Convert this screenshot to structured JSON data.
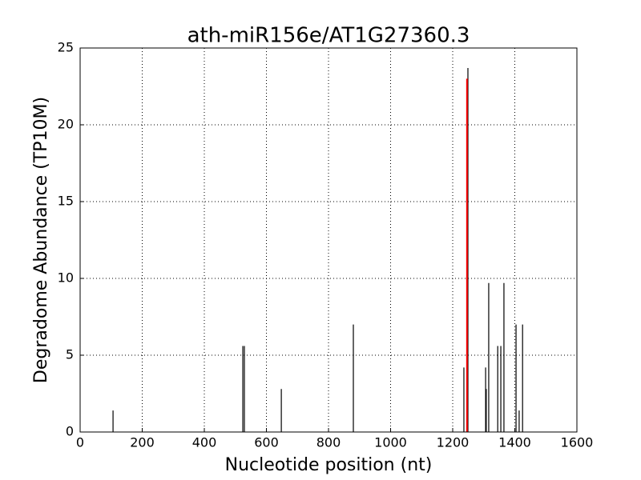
{
  "chart_data": {
    "type": "bar",
    "title": "ath-miR156e/AT1G27360.3",
    "x_label": "Nucleotide position (nt)",
    "y_label": "Degradome Abundance (TP10M)",
    "series": [
      {
        "color": "#000000",
        "x": [
          106,
          524,
          529,
          648,
          880,
          1236,
          1249,
          1306,
          1308,
          1316,
          1345,
          1355,
          1365,
          1404,
          1414,
          1425
        ],
        "values": [
          1.4,
          5.6,
          5.6,
          2.8,
          7.0,
          4.2,
          23.7,
          4.2,
          2.8,
          9.7,
          5.6,
          5.6,
          9.7,
          7.0,
          1.4,
          7.0
        ]
      },
      {
        "color": "#ff0000",
        "x": [
          1246
        ],
        "values": [
          23.0
        ]
      }
    ],
    "xlim": [
      0,
      1600
    ],
    "xticks": [
      0,
      200,
      400,
      600,
      800,
      1000,
      1200,
      1400,
      1600
    ],
    "ylim": [
      0,
      25
    ],
    "yticks": [
      0,
      5,
      10,
      15,
      20,
      25
    ],
    "grid": true
  }
}
